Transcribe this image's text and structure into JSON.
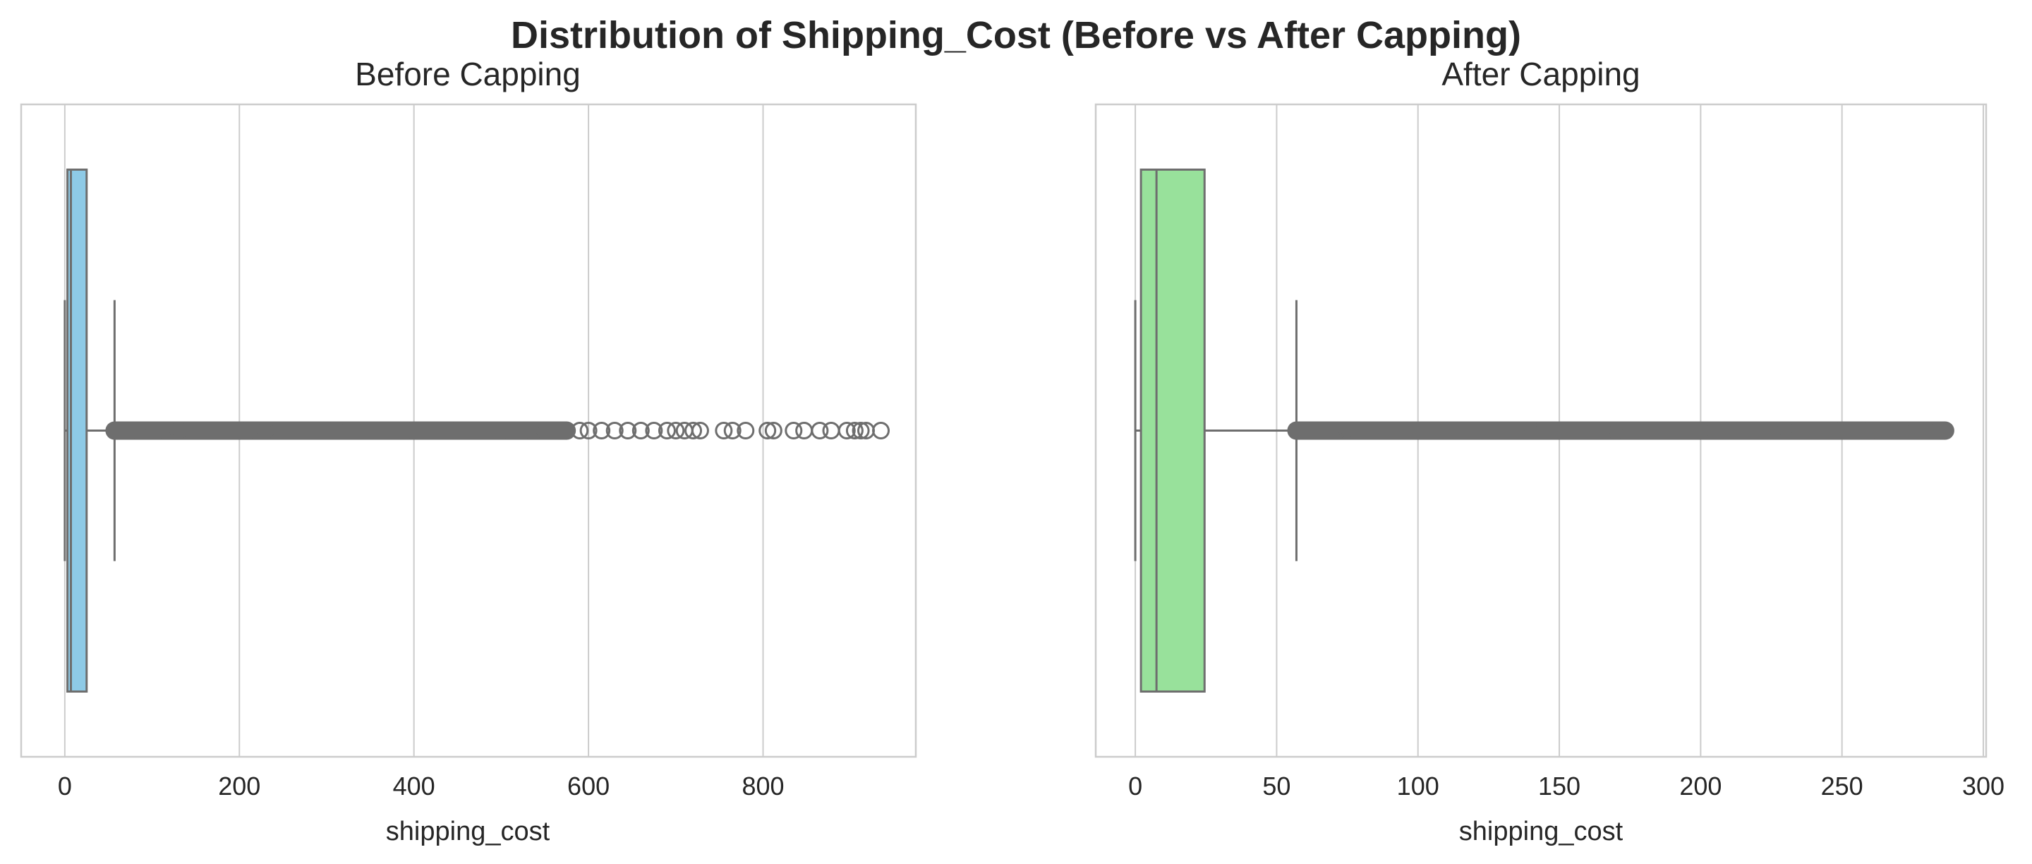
{
  "suptitle": "Distribution of Shipping_Cost (Before vs After Capping)",
  "chart_data": [
    {
      "type": "box",
      "title": "Before Capping",
      "xlabel": "shipping_cost",
      "ylabel": "",
      "xlim": [
        -50,
        975
      ],
      "xticks": [
        0,
        200,
        400,
        600,
        800
      ],
      "grid": "vertical",
      "box_color": "#8ecae6",
      "stats": {
        "whisker_low": 0,
        "q1": 3,
        "median": 7,
        "q3": 25,
        "whisker_high": 57
      },
      "outliers": [
        57,
        65,
        75,
        85,
        100,
        115,
        130,
        150,
        170,
        190,
        210,
        230,
        250,
        275,
        300,
        325,
        350,
        375,
        400,
        425,
        450,
        475,
        500,
        525,
        550,
        575,
        590,
        600,
        615,
        630,
        645,
        660,
        675,
        690,
        700,
        710,
        720,
        728,
        755,
        765,
        780,
        805,
        812,
        835,
        847,
        865,
        878,
        896,
        905,
        912,
        918,
        935
      ]
    },
    {
      "type": "box",
      "title": "After Capping",
      "xlabel": "shipping_cost",
      "ylabel": "",
      "xlim": [
        -14,
        301
      ],
      "xticks": [
        0,
        50,
        100,
        150,
        200,
        250,
        300
      ],
      "grid": "vertical",
      "box_color": "#98e19b",
      "stats": {
        "whisker_low": 0,
        "q1": 2,
        "median": 7.5,
        "q3": 24.5,
        "whisker_high": 57
      },
      "outliers": [
        57,
        60,
        65,
        70,
        75,
        80,
        90,
        100,
        110,
        120,
        130,
        140,
        150,
        160,
        170,
        180,
        190,
        200,
        210,
        220,
        230,
        240,
        250,
        260,
        268,
        275,
        280,
        284,
        286.5
      ]
    }
  ]
}
